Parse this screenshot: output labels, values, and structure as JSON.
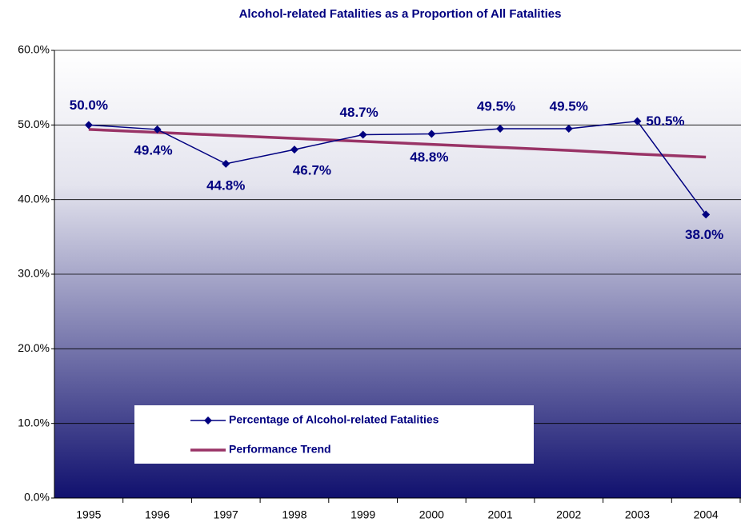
{
  "chart_data": {
    "type": "line",
    "title": "Alcohol-related Fatalities as a Proportion of All Fatalities",
    "categories": [
      "1995",
      "1996",
      "1997",
      "1998",
      "1999",
      "2000",
      "2001",
      "2002",
      "2003",
      "2004"
    ],
    "series": [
      {
        "name": "Percentage of Alcohol-related Fatalities",
        "color": "#000080",
        "values": [
          50.0,
          49.4,
          44.8,
          46.7,
          48.7,
          48.8,
          49.5,
          49.5,
          50.5,
          38.0
        ],
        "value_labels": [
          "50.0%",
          "49.4%",
          "44.8%",
          "46.7%",
          "48.7%",
          "48.8%",
          "49.5%",
          "49.5%",
          "50.5%",
          "38.0%"
        ]
      },
      {
        "name": "Performance Trend",
        "color": "#993366",
        "values": [
          49.4,
          49.0,
          48.6,
          48.2,
          47.8,
          47.4,
          47.0,
          46.6,
          46.1,
          45.7
        ]
      }
    ],
    "ylim": [
      0,
      60
    ],
    "yticks": [
      {
        "value": 0,
        "label": "0.0%"
      },
      {
        "value": 10,
        "label": "10.0%"
      },
      {
        "value": 20,
        "label": "20.0%"
      },
      {
        "value": 30,
        "label": "30.0%"
      },
      {
        "value": 40,
        "label": "40.0%"
      },
      {
        "value": 50,
        "label": "50.0%"
      },
      {
        "value": 60,
        "label": "60.0%"
      }
    ],
    "grid": true,
    "legend": "lower left"
  }
}
